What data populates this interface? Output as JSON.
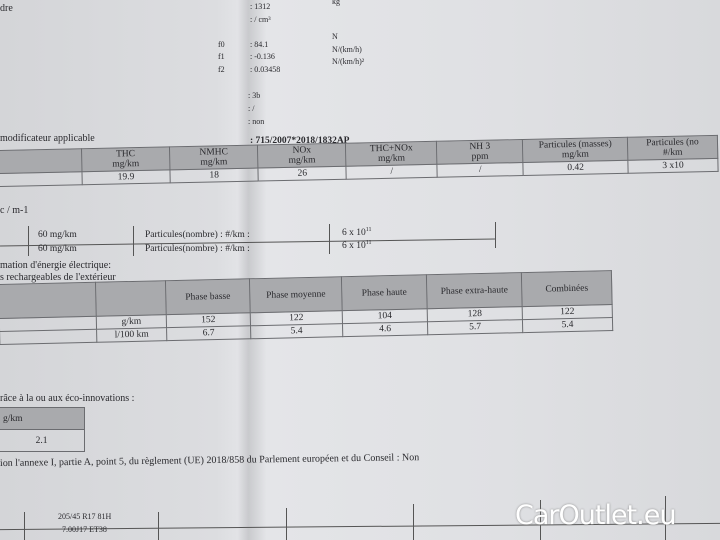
{
  "top": {
    "frag": "dre",
    "mass": ": 1312",
    "mass_unit": "kg",
    "cm3": ": / cm³",
    "f0_label": "f0",
    "f0": ": 84.1",
    "f0_unit": "N",
    "f1_label": "f1",
    "f1": ": -0.136",
    "f1_unit": "N/(km/h)",
    "f2_label": "f2",
    "f2": ": 0.03458",
    "f2_unit": "N/(km/h)²",
    "v1": ": 3b",
    "v2": ": /",
    "v3": ": non"
  },
  "reg": {
    "label": "modificateur applicable",
    "value": ": 715/2007*2018/1832AP"
  },
  "emissions": {
    "headers": [
      [
        "THC",
        "mg/km"
      ],
      [
        "NMHC",
        "mg/km"
      ],
      [
        "NOx",
        "mg/km"
      ],
      [
        "THC+NOx",
        "mg/km"
      ],
      [
        "NH 3",
        "ppm"
      ],
      [
        "Particules (masses)",
        "mg/km"
      ],
      [
        "Particules (no",
        "#/km"
      ]
    ],
    "values": [
      "19.9",
      "18",
      "26",
      "/",
      "/",
      "0.42",
      "3 x10"
    ]
  },
  "smoke": "c / m-1",
  "limits": [
    {
      "a": "60 mg/km",
      "b": "Particules(nombre) : #/km :",
      "c": "6 x 10",
      "exp": "11"
    },
    {
      "a": "60 mg/km",
      "b": "Particules(nombre) : #/km :",
      "c": "6 x 10",
      "exp": "11"
    }
  ],
  "energy": {
    "line1": "mation d'énergie électrique:",
    "line2": "s rechargeables de l'extérieur"
  },
  "phase": {
    "headers": [
      "Phase basse",
      "Phase moyenne",
      "Phase haute",
      "Phase extra-haute",
      "Combinées"
    ],
    "rows": [
      {
        "unit": "g/km",
        "values": [
          "152",
          "122",
          "104",
          "128",
          "122"
        ]
      },
      {
        "unit": "l/100 km",
        "values": [
          "6.7",
          "5.4",
          "4.6",
          "5.7",
          "5.4"
        ]
      }
    ]
  },
  "eco": {
    "label": "râce à la ou aux éco-innovations :",
    "unit": "g/km",
    "value": "2.1"
  },
  "annex": "ion l'annexe I, partie A, point 5, du règlement (UE) 2018/858 du Parlement européen et du Conseil : Non",
  "tyres": {
    "l1": "205/45 R17 81H",
    "l2": "7.00J17 ET38"
  },
  "watermark": "CarOutlet.eu"
}
